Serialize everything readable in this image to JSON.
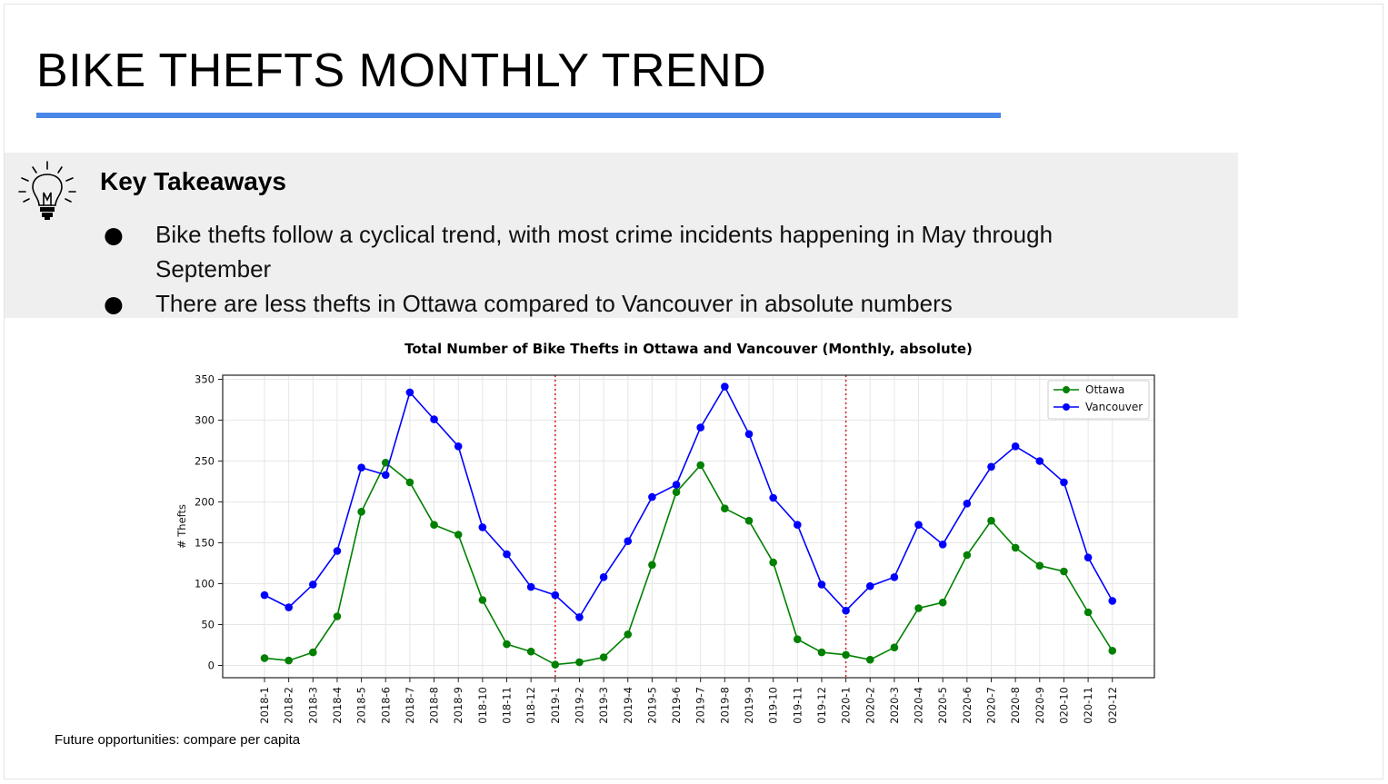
{
  "slide": {
    "title": "BIKE THEFTS MONTHLY TREND",
    "accent_color": "#4a86e8",
    "takeaways": {
      "icon": "lightbulb-icon",
      "heading": "Key Takeaways",
      "bullets": [
        "Bike thefts follow a cyclical trend, with most crime incidents happening in May through September",
        "There are less thefts in Ottawa compared to Vancouver in absolute numbers"
      ]
    },
    "footnote": "Future opportunities: compare per capita"
  },
  "chart_data": {
    "type": "line",
    "title": "Total Number of Bike Thefts in Ottawa and Vancouver (Monthly, absolute)",
    "xlabel": "",
    "ylabel": "# Thefts",
    "ylim": [
      -15,
      355
    ],
    "yticks": [
      0,
      50,
      100,
      150,
      200,
      250,
      300,
      350
    ],
    "grid": true,
    "legend_position": "top-right",
    "x": [
      "2018-1",
      "2018-2",
      "2018-3",
      "2018-4",
      "2018-5",
      "2018-6",
      "2018-7",
      "2018-8",
      "2018-9",
      "2018-10",
      "2018-11",
      "2018-12",
      "2019-1",
      "2019-2",
      "2019-3",
      "2019-4",
      "2019-5",
      "2019-6",
      "2019-7",
      "2019-8",
      "2019-9",
      "2019-10",
      "2019-11",
      "2019-12",
      "2020-1",
      "2020-2",
      "2020-3",
      "2020-4",
      "2020-5",
      "2020-6",
      "2020-7",
      "2020-8",
      "2020-9",
      "2020-10",
      "2020-11",
      "2020-12"
    ],
    "x_tick_labels": [
      "2018-1",
      "2018-2",
      "2018-3",
      "2018-4",
      "2018-5",
      "2018-6",
      "2018-7",
      "2018-8",
      "2018-9",
      "018-10",
      "018-11",
      "018-12",
      "2019-1",
      "2019-2",
      "2019-3",
      "2019-4",
      "2019-5",
      "2019-6",
      "2019-7",
      "2019-8",
      "2019-9",
      "019-10",
      "019-11",
      "019-12",
      "2020-1",
      "2020-2",
      "2020-3",
      "2020-4",
      "2020-5",
      "2020-6",
      "2020-7",
      "2020-8",
      "2020-9",
      "020-10",
      "020-11",
      "020-12"
    ],
    "series": [
      {
        "name": "Ottawa",
        "color": "#008000",
        "values": [
          9,
          6,
          16,
          60,
          188,
          248,
          224,
          172,
          160,
          80,
          26,
          17,
          1,
          4,
          10,
          38,
          123,
          212,
          245,
          192,
          177,
          126,
          32,
          16,
          13,
          7,
          22,
          70,
          77,
          135,
          177,
          144,
          122,
          115,
          65,
          18
        ]
      },
      {
        "name": "Vancouver",
        "color": "#0000ff",
        "values": [
          86,
          71,
          99,
          140,
          242,
          233,
          334,
          301,
          268,
          169,
          136,
          96,
          86,
          59,
          108,
          152,
          206,
          221,
          291,
          341,
          283,
          205,
          172,
          99,
          67,
          97,
          108,
          172,
          148,
          198,
          243,
          268,
          250,
          224,
          132,
          79
        ]
      }
    ],
    "vlines": [
      {
        "x": "2019-1",
        "color": "#d62728",
        "style": "dotted"
      },
      {
        "x": "2020-1",
        "color": "#d62728",
        "style": "dotted"
      }
    ]
  }
}
